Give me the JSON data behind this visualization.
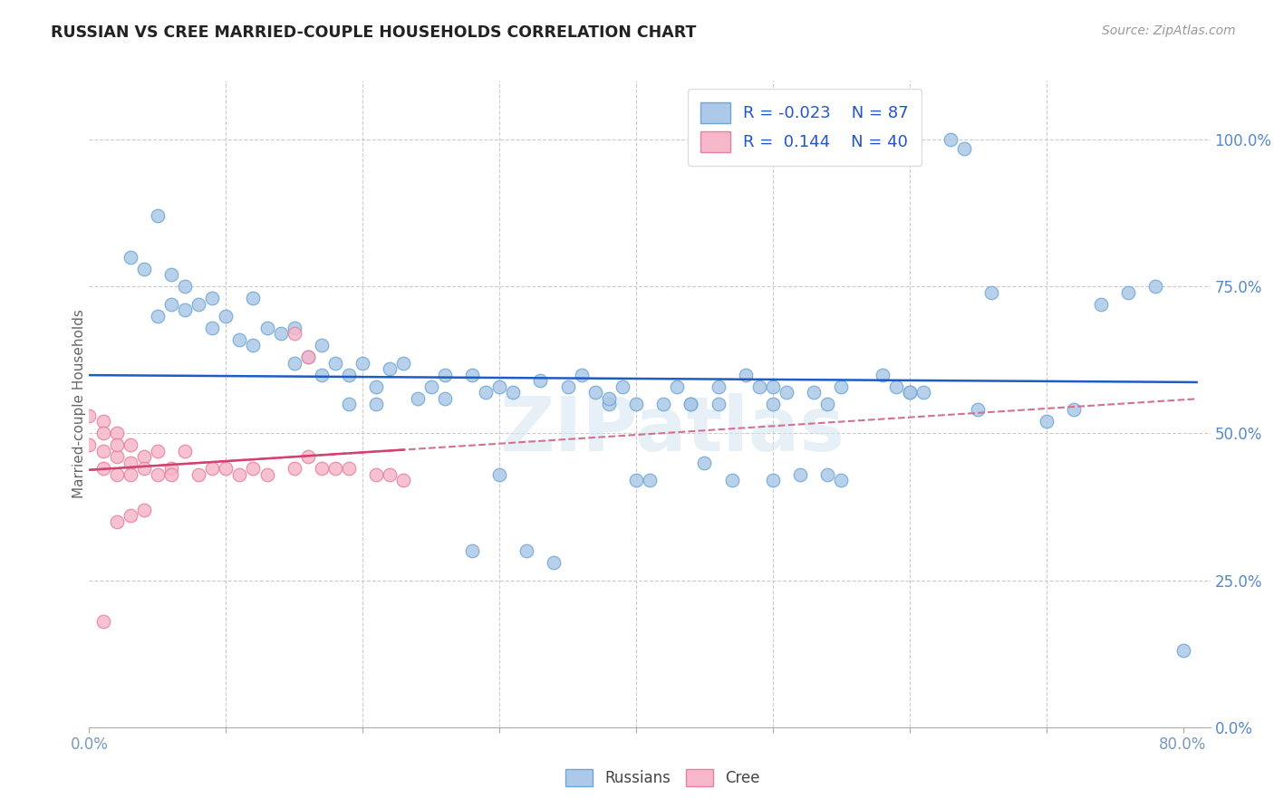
{
  "title": "RUSSIAN VS CREE MARRIED-COUPLE HOUSEHOLDS CORRELATION CHART",
  "source": "Source: ZipAtlas.com",
  "xlim": [
    0.0,
    0.82
  ],
  "ylim": [
    0.0,
    1.1
  ],
  "x_tick_vals": [
    0.0,
    0.1,
    0.2,
    0.3,
    0.4,
    0.5,
    0.6,
    0.7,
    0.8
  ],
  "x_tick_labels": [
    "0.0%",
    "",
    "",
    "",
    "",
    "",
    "",
    "",
    "80.0%"
  ],
  "y_tick_vals": [
    0.0,
    0.25,
    0.5,
    0.75,
    1.0
  ],
  "y_tick_labels": [
    "0.0%",
    "25.0%",
    "50.0%",
    "75.0%",
    "100.0%"
  ],
  "russian_color": "#adc8e8",
  "russian_edge": "#6fa8d5",
  "cree_color": "#f5b8cb",
  "cree_edge": "#e8809e",
  "trend_russian_color": "#1f5bc4",
  "trend_cree_color": "#d44070",
  "trend_cree_dash_color": "#d47090",
  "legend_R_russian": "-0.023",
  "legend_N_russian": "87",
  "legend_R_cree": "0.144",
  "legend_N_cree": "40",
  "watermark": "ZIPatlas",
  "rus_x": [
    0.63,
    0.64,
    0.8,
    0.03,
    0.04,
    0.05,
    0.05,
    0.06,
    0.06,
    0.07,
    0.07,
    0.08,
    0.09,
    0.09,
    0.1,
    0.11,
    0.12,
    0.12,
    0.13,
    0.14,
    0.15,
    0.15,
    0.16,
    0.17,
    0.17,
    0.18,
    0.19,
    0.2,
    0.21,
    0.22,
    0.23,
    0.25,
    0.26,
    0.28,
    0.29,
    0.3,
    0.31,
    0.33,
    0.35,
    0.36,
    0.37,
    0.38,
    0.39,
    0.4,
    0.41,
    0.43,
    0.44,
    0.45,
    0.46,
    0.47,
    0.48,
    0.49,
    0.5,
    0.5,
    0.51,
    0.52,
    0.53,
    0.54,
    0.55,
    0.55,
    0.58,
    0.59,
    0.6,
    0.61,
    0.65,
    0.66,
    0.7,
    0.72,
    0.74,
    0.76,
    0.78,
    0.28,
    0.3,
    0.32,
    0.34,
    0.19,
    0.21,
    0.24,
    0.26,
    0.38,
    0.4,
    0.42,
    0.44,
    0.46,
    0.5,
    0.54,
    0.6
  ],
  "rus_y": [
    1.0,
    0.985,
    0.13,
    0.8,
    0.78,
    0.87,
    0.7,
    0.77,
    0.72,
    0.71,
    0.75,
    0.72,
    0.73,
    0.68,
    0.7,
    0.66,
    0.73,
    0.65,
    0.68,
    0.67,
    0.62,
    0.68,
    0.63,
    0.65,
    0.6,
    0.62,
    0.6,
    0.62,
    0.58,
    0.61,
    0.62,
    0.58,
    0.6,
    0.6,
    0.57,
    0.58,
    0.57,
    0.59,
    0.58,
    0.6,
    0.57,
    0.55,
    0.58,
    0.42,
    0.42,
    0.58,
    0.55,
    0.45,
    0.58,
    0.42,
    0.6,
    0.58,
    0.58,
    0.42,
    0.57,
    0.43,
    0.57,
    0.43,
    0.58,
    0.42,
    0.6,
    0.58,
    0.57,
    0.57,
    0.54,
    0.74,
    0.52,
    0.54,
    0.72,
    0.74,
    0.75,
    0.3,
    0.43,
    0.3,
    0.28,
    0.55,
    0.55,
    0.56,
    0.56,
    0.56,
    0.55,
    0.55,
    0.55,
    0.55,
    0.55,
    0.55,
    0.57
  ],
  "cree_x": [
    0.0,
    0.0,
    0.01,
    0.01,
    0.01,
    0.01,
    0.02,
    0.02,
    0.02,
    0.02,
    0.03,
    0.03,
    0.03,
    0.04,
    0.04,
    0.05,
    0.05,
    0.06,
    0.06,
    0.07,
    0.08,
    0.09,
    0.1,
    0.11,
    0.12,
    0.13,
    0.15,
    0.16,
    0.17,
    0.18,
    0.19,
    0.21,
    0.22,
    0.23,
    0.01,
    0.02,
    0.03,
    0.04,
    0.15,
    0.16
  ],
  "cree_y": [
    0.53,
    0.48,
    0.52,
    0.47,
    0.5,
    0.44,
    0.5,
    0.46,
    0.48,
    0.43,
    0.48,
    0.45,
    0.43,
    0.46,
    0.44,
    0.47,
    0.43,
    0.44,
    0.43,
    0.47,
    0.43,
    0.44,
    0.44,
    0.43,
    0.44,
    0.43,
    0.44,
    0.46,
    0.44,
    0.44,
    0.44,
    0.43,
    0.43,
    0.42,
    0.18,
    0.35,
    0.36,
    0.37,
    0.67,
    0.63
  ]
}
